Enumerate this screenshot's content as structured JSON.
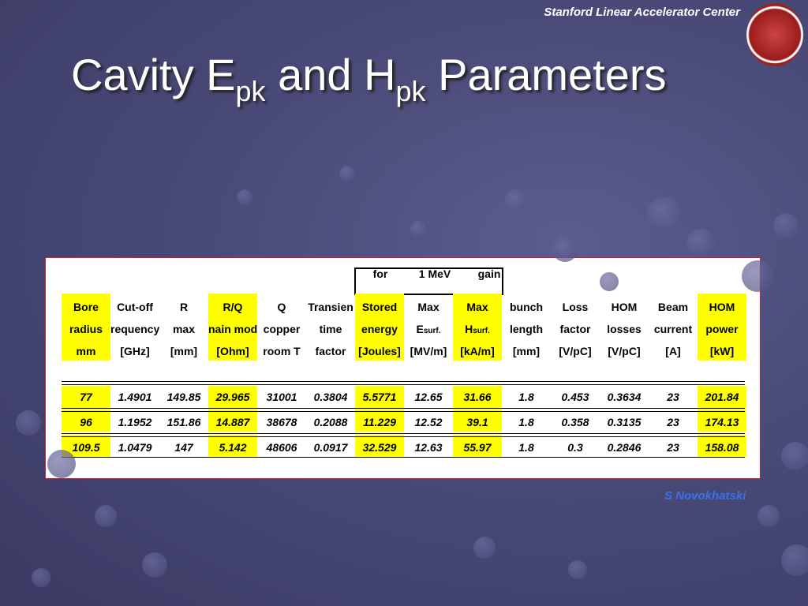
{
  "header": {
    "organization": "Stanford Linear Accelerator Center"
  },
  "title": {
    "parts": [
      "Cavity E",
      "pk",
      " and H",
      "pk",
      " Parameters"
    ]
  },
  "table": {
    "group_header": [
      "for",
      "1 MeV",
      "gain"
    ],
    "header_rows": [
      [
        "Bore",
        "Cut-off",
        "R",
        "R/Q",
        "Q",
        "Transien",
        "Stored",
        "Max",
        "Max",
        "bunch",
        "Loss",
        "HOM",
        "Beam",
        "HOM"
      ],
      [
        "radius",
        "requency",
        "max",
        "nain mod",
        "copper",
        "time",
        "energy",
        {
          "text": "E",
          "sub": "surf."
        },
        {
          "text": "H",
          "sub": "surf."
        },
        "length",
        "factor",
        "losses",
        "current",
        "power"
      ],
      [
        "mm",
        "[GHz]",
        "[mm]",
        "[Ohm]",
        "room T",
        "factor",
        "[Joules]",
        "[MV/m]",
        "[kA/m]",
        "[mm]",
        "[V/pC]",
        "[V/pC]",
        "[A]",
        "[kW]"
      ]
    ],
    "rows": [
      [
        77,
        1.4901,
        149.85,
        29.965,
        31001,
        0.3804,
        5.5771,
        12.65,
        31.66,
        1.8,
        0.453,
        0.3634,
        23,
        201.84
      ],
      [
        96,
        1.1952,
        151.86,
        14.887,
        38678,
        0.2088,
        11.229,
        12.52,
        39.1,
        1.8,
        0.358,
        0.3135,
        23,
        174.13
      ],
      [
        109.5,
        1.0479,
        147,
        5.142,
        48606,
        0.0917,
        32.529,
        12.63,
        55.97,
        1.8,
        0.3,
        0.2846,
        23,
        158.08
      ]
    ]
  },
  "footer": {
    "author": "S Novokhatski"
  }
}
